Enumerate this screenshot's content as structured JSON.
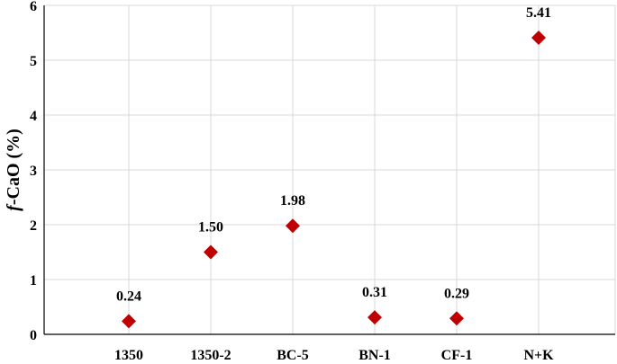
{
  "chart_data": {
    "type": "scatter",
    "title": "",
    "xlabel": "",
    "ylabel_italic": "f",
    "ylabel_rest": "-CaO (%)",
    "categories": [
      "1350",
      "1350-2",
      "BC-5",
      "BN-1",
      "CF-1",
      "N+K"
    ],
    "values": [
      0.24,
      1.5,
      1.98,
      0.31,
      0.29,
      5.41
    ],
    "data_labels": [
      "0.24",
      "1.50",
      "1.98",
      "0.31",
      "0.29",
      "5.41"
    ],
    "ylim": [
      0,
      6
    ],
    "yticks": [
      "0",
      "1",
      "2",
      "3",
      "4",
      "5",
      "6"
    ],
    "grid": true,
    "legend": "none",
    "marker": "diamond",
    "marker_color": "#c00000"
  }
}
